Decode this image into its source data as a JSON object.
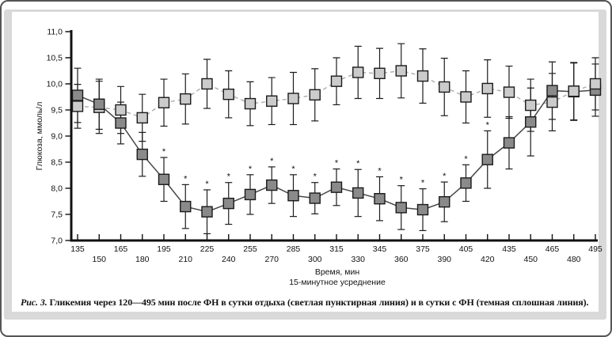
{
  "figure": {
    "caption_label": "Рис. 3.",
    "caption_text": "Гликемия через 120—495 мин после ФН в сутки отдыха (светлая пунктирная линия) и в сутки с ФН (темная сплошная линия)."
  },
  "chart_data": {
    "type": "line",
    "title": "",
    "xlabel": "Время, мин",
    "xlabel_sub": "15-минутное усреднение",
    "ylabel": "Глюкоза, ммоль/л",
    "xlim": [
      135,
      495
    ],
    "ylim": [
      7.0,
      11.0
    ],
    "grid": false,
    "legend_position": "none (series described in caption)",
    "significance_marker": "*",
    "yticks": [
      7.0,
      7.5,
      8.0,
      8.5,
      9.0,
      9.5,
      10.0,
      10.5,
      11.0
    ],
    "ytick_labels": [
      "7,0",
      "7,5",
      "8,0",
      "8,5",
      "9,0",
      "9,5",
      "10,0",
      "10,5",
      "11,0"
    ],
    "x": [
      135,
      150,
      165,
      180,
      195,
      210,
      225,
      240,
      255,
      270,
      285,
      300,
      315,
      330,
      345,
      360,
      375,
      390,
      405,
      420,
      435,
      450,
      465,
      480,
      495
    ],
    "series": [
      {
        "name": "сутки отдыха (светлая пунктирная линия)",
        "style": "light-dashed",
        "values": [
          9.57,
          9.55,
          9.5,
          9.35,
          9.64,
          9.71,
          10.0,
          9.8,
          9.62,
          9.67,
          9.72,
          9.79,
          10.05,
          10.22,
          10.2,
          10.25,
          10.15,
          9.94,
          9.75,
          9.91,
          9.84,
          9.59,
          9.65,
          9.86,
          10.0
        ],
        "err": [
          0.42,
          0.5,
          0.45,
          0.45,
          0.45,
          0.48,
          0.47,
          0.45,
          0.42,
          0.45,
          0.5,
          0.5,
          0.45,
          0.5,
          0.48,
          0.52,
          0.52,
          0.55,
          0.5,
          0.55,
          0.5,
          0.5,
          0.55,
          0.55,
          0.5
        ],
        "sig": []
      },
      {
        "name": "сутки с ФН (темная сплошная линия)",
        "style": "dark-solid",
        "values": [
          9.78,
          9.61,
          9.25,
          8.65,
          8.17,
          7.65,
          7.55,
          7.71,
          7.88,
          8.06,
          7.86,
          7.81,
          8.02,
          7.91,
          7.8,
          7.63,
          7.59,
          7.74,
          8.1,
          8.55,
          8.87,
          9.27,
          9.87,
          9.85,
          9.88
        ],
        "err": [
          0.52,
          0.48,
          0.4,
          0.42,
          0.42,
          0.42,
          0.42,
          0.4,
          0.38,
          0.35,
          0.4,
          0.3,
          0.35,
          0.45,
          0.42,
          0.42,
          0.4,
          0.38,
          0.35,
          0.55,
          0.5,
          0.65,
          0.55,
          0.55,
          0.5
        ],
        "sig": [
          195,
          210,
          225,
          240,
          255,
          270,
          285,
          300,
          315,
          330,
          345,
          360,
          375,
          390,
          405,
          420
        ]
      }
    ],
    "colors": {
      "light_fill": "#cbcbcb",
      "dark_fill": "#8a8a8a",
      "light_line": "#ababab",
      "dark_line": "#474747",
      "marker_stroke": "#1a1a1a",
      "errorbar": "#1c1c1c",
      "axis": "#111111",
      "frame": "#d9d9d9"
    }
  }
}
